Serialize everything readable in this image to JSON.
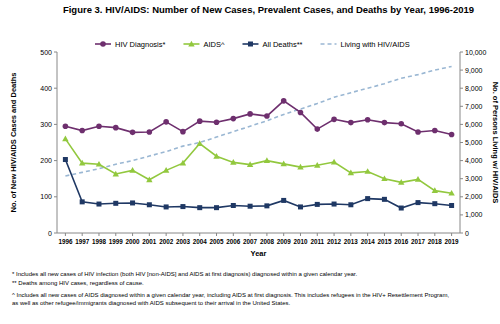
{
  "chart_data": {
    "type": "line",
    "title": "Figure 3. HIV/AIDS: Number of New Cases, Prevalent Cases, and Deaths by Year, 1996-2019",
    "x_label": "Year",
    "y_label": "No. of New HIV/AIDS Cases and Deaths",
    "y2_label": "No. of Persons Living w/ HIV/AIDS",
    "categories": [
      "1996",
      "1997",
      "1998",
      "1999",
      "2000",
      "2001",
      "2002",
      "2003",
      "2004",
      "2005",
      "2006",
      "2007",
      "2008",
      "2009",
      "2010",
      "2011",
      "2012",
      "2013",
      "2014",
      "2015",
      "2016",
      "2017",
      "2018",
      "2019"
    ],
    "ylim": [
      0,
      500
    ],
    "yticks": [
      0,
      100,
      200,
      300,
      400,
      500
    ],
    "y2lim": [
      0,
      10000
    ],
    "y2ticks": [
      0,
      {
        "value": 1000,
        "label": "1,000"
      },
      {
        "value": 2000,
        "label": "2,000"
      },
      {
        "value": 3000,
        "label": "3,000"
      },
      {
        "value": 4000,
        "label": "4,000"
      },
      {
        "value": 5000,
        "label": "5,000"
      },
      {
        "value": 6000,
        "label": "6,000"
      },
      {
        "value": 7000,
        "label": "7,000"
      },
      {
        "value": 8000,
        "label": "8,000"
      },
      {
        "value": 9000,
        "label": "9,000"
      },
      {
        "value": 10000,
        "label": "10,000"
      }
    ],
    "legend": "top",
    "series": [
      {
        "name": "HIV Diagnosis*",
        "color": "#6e2f6e",
        "marker": "circle",
        "line_style": "solid",
        "values": [
          295,
          283,
          295,
          291,
          278,
          279,
          307,
          280,
          309,
          306,
          316,
          329,
          323,
          365,
          333,
          287,
          314,
          305,
          313,
          305,
          302,
          279,
          283,
          272
        ]
      },
      {
        "name": "AIDS^",
        "color": "#92c83e",
        "marker": "triangle",
        "line_style": "solid",
        "values": [
          260,
          193,
          190,
          163,
          173,
          147,
          173,
          193,
          247,
          212,
          195,
          189,
          200,
          191,
          182,
          187,
          196,
          166,
          170,
          150,
          140,
          148,
          117,
          110
        ]
      },
      {
        "name": "All Deaths**",
        "color": "#1f3864",
        "marker": "square",
        "line_style": "solid",
        "values": [
          203,
          86,
          80,
          82,
          83,
          78,
          72,
          73,
          70,
          70,
          76,
          74,
          75,
          90,
          72,
          79,
          80,
          78,
          95,
          93,
          69,
          84,
          81,
          76
        ]
      },
      {
        "name": "Living with HIV/AIDS",
        "color": "#9ab7d3",
        "line_style": "dashed",
        "axis": "y2",
        "values": [
          3150,
          3350,
          3550,
          3800,
          4000,
          4250,
          4500,
          4800,
          5000,
          5300,
          5600,
          5900,
          6200,
          6550,
          6850,
          7150,
          7500,
          7750,
          8000,
          8250,
          8550,
          8750,
          9000,
          9200
        ]
      }
    ],
    "notes": [
      "* Includes all new cases of HIV infection (both HIV [non-AIDS] and AIDS at first diagnosis) diagnosed within a given calendar year.",
      "** Deaths among HIV cases, regardless of cause.",
      "^ Includes all new cases of AIDS diagnosed within a given calendar year, including AIDS at first diagnosis. This includes refugees in the HIV+ Resettlement Program,",
      "as well as other refugee/immigrants diagnosed with AIDS subsequent to their arrival in the United States."
    ]
  }
}
